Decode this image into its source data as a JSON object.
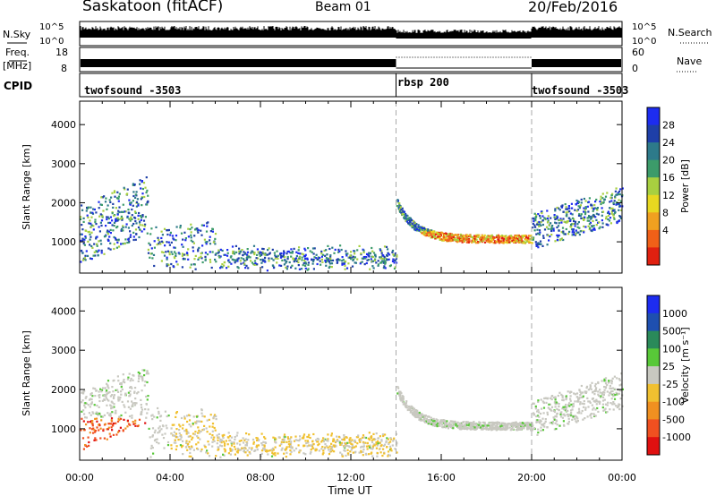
{
  "header": {
    "site": "Saskatoon (fitACF)",
    "beam": "Beam 01",
    "date": "20/Feb/2016"
  },
  "colors": {
    "power": [
      "#1d2cf0",
      "#1e3fa8",
      "#2d7a8a",
      "#3c9b6a",
      "#a8d040",
      "#e8d820",
      "#f0a020",
      "#f06018",
      "#e02010"
    ],
    "velocity": [
      "#1d2cf0",
      "#1e4fb0",
      "#2a8a5a",
      "#58c838",
      "#c8c8c0",
      "#f0c030",
      "#f09020",
      "#f05020",
      "#e01010"
    ],
    "velocity_bg": "#c8c8c0"
  },
  "chart_data": [
    {
      "type": "line",
      "title": "N.Sky / N.Search",
      "ylabel": "N.Sky",
      "right_label": "N.Search",
      "left_ticks": [
        "10^5",
        "10^0"
      ],
      "right_ticks": [
        "10^5",
        "10^0"
      ]
    },
    {
      "type": "line",
      "title": "Freq / Nave",
      "ylabel_lines": [
        "Freq.",
        "[MHz]"
      ],
      "right_label": "Nave",
      "left_ticks": [
        "18",
        "8"
      ],
      "right_ticks": [
        "60",
        "0"
      ]
    },
    {
      "type": "table",
      "title": "CPID",
      "label": "CPID",
      "segments": [
        {
          "name": "twofsound -3503",
          "start": 0,
          "end": 14
        },
        {
          "name": "rbsp 200",
          "start": 14,
          "end": 20
        },
        {
          "name": "twofsound -3503",
          "start": 20,
          "end": 24
        }
      ]
    },
    {
      "type": "heatmap",
      "title": "Power",
      "ylabel": "Slant Range [km]",
      "ylim": [
        200,
        4600
      ],
      "yticks": [
        1000,
        2000,
        3000,
        4000
      ],
      "xlim": [
        0,
        24
      ],
      "xticks": [
        0,
        4,
        8,
        12,
        16,
        20,
        24
      ],
      "colorbar": {
        "label": "Power [dB]",
        "ticks": [
          "28",
          "24",
          "20",
          "16",
          "12",
          "8",
          "4"
        ]
      }
    },
    {
      "type": "heatmap",
      "title": "Velocity",
      "ylabel": "Slant Range [km]",
      "xlabel": "Time UT",
      "ylim": [
        200,
        4600
      ],
      "yticks": [
        1000,
        2000,
        3000,
        4000
      ],
      "xlim": [
        0,
        24
      ],
      "xticks": [
        0,
        4,
        8,
        12,
        16,
        20,
        24
      ],
      "xtick_labels": [
        "00:00",
        "04:00",
        "08:00",
        "12:00",
        "16:00",
        "20:00",
        "00:00"
      ],
      "colorbar": {
        "label": "Velocity [m s⁻¹]",
        "ticks": [
          "1000",
          "500",
          "100",
          "25",
          "-25",
          "-100",
          "-500",
          "-1000"
        ]
      }
    }
  ]
}
